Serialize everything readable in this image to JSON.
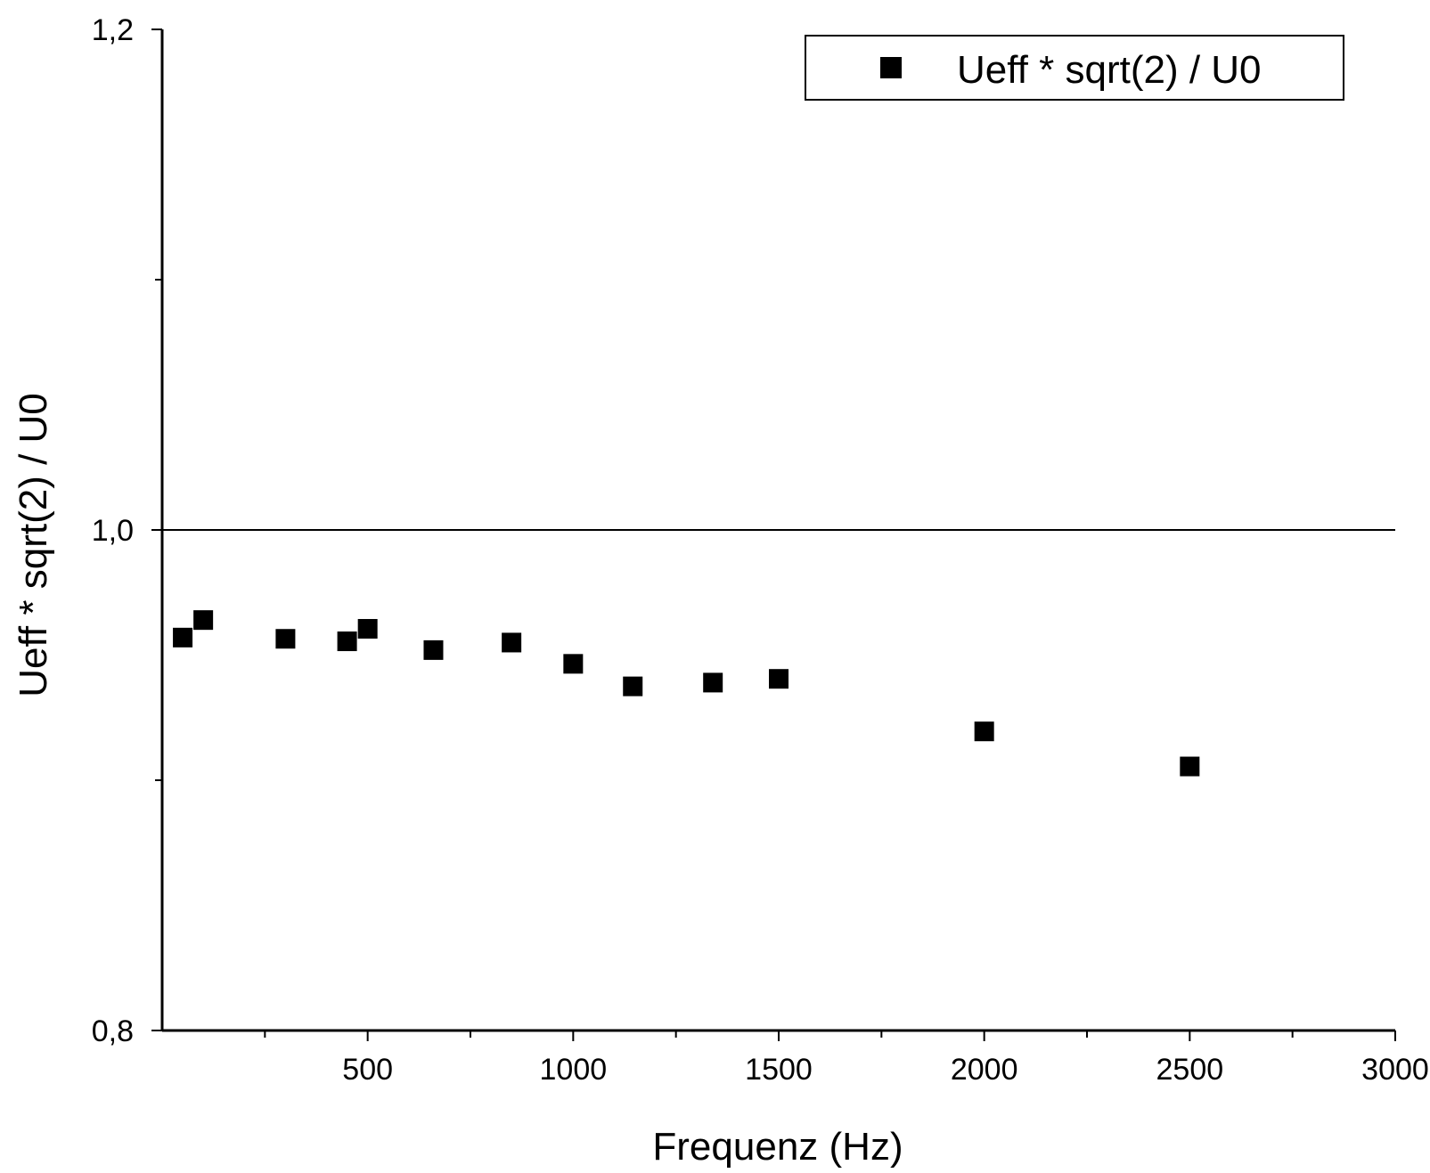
{
  "chart_data": {
    "type": "scatter",
    "title": "",
    "xlabel": "Frequenz (Hz)",
    "ylabel": "Ueff * sqrt(2) / U0",
    "xlim": [
      0,
      3000
    ],
    "ylim": [
      0.8,
      1.2
    ],
    "x_ticks": [
      500,
      1000,
      1500,
      2000,
      2500,
      3000
    ],
    "x_tick_labels": [
      "500",
      "1000",
      "1500",
      "2000",
      "2500",
      "3000"
    ],
    "y_ticks": [
      0.8,
      1.0,
      1.2
    ],
    "y_tick_labels": [
      "0,8",
      "1,0",
      "1,2"
    ],
    "x_minor_step": 250,
    "y_minor_step": 0.1,
    "reference_line_y": 1.0,
    "grid": false,
    "legend_position": "top-right",
    "marker_color": "#000000",
    "series": [
      {
        "name": "Ueff * sqrt(2) / U0",
        "marker": "square",
        "x": [
          50,
          100,
          300,
          450,
          500,
          660,
          850,
          1000,
          1145,
          1340,
          1500,
          2000,
          2500
        ],
        "y": [
          0.957,
          0.964,
          0.9565,
          0.9555,
          0.9605,
          0.952,
          0.955,
          0.9465,
          0.9375,
          0.939,
          0.9405,
          0.9195,
          0.9055
        ]
      }
    ]
  }
}
